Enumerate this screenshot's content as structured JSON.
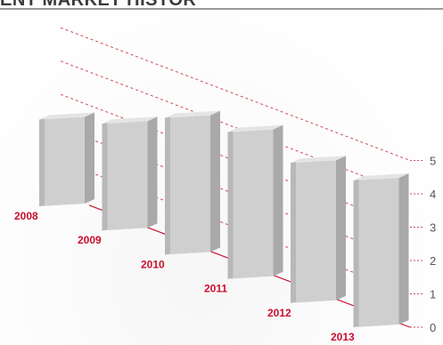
{
  "header": {
    "title": "ENT MARKET HISTOR"
  },
  "colors": {
    "accent": "#c8102e",
    "bar_front": "#cfcfcf",
    "bar_side": "#a9a9a9",
    "bar_top": "#e4e4e4",
    "grid": "#d04a55",
    "tick_text": "#555555"
  },
  "chart_data": {
    "type": "bar",
    "categories": [
      "2008",
      "2009",
      "2010",
      "2011",
      "2012",
      "2013"
    ],
    "values": [
      2.6,
      3.2,
      4.1,
      4.4,
      4.2,
      4.4
    ],
    "ylim": [
      0,
      5
    ],
    "yticks": [
      "0",
      "1",
      "2",
      "3",
      "4",
      "5"
    ],
    "grid": true,
    "title": "",
    "xlabel": "",
    "ylabel": ""
  }
}
